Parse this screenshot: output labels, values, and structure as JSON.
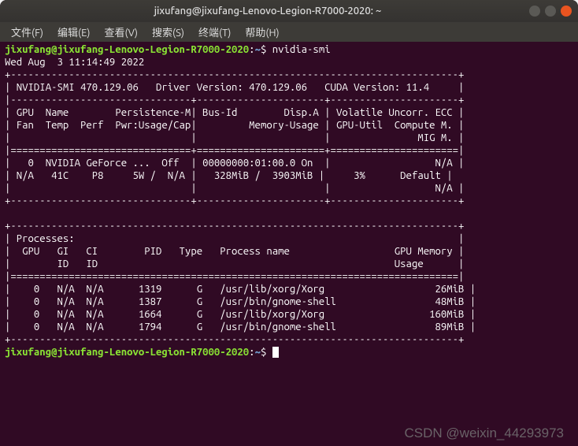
{
  "window": {
    "title": "jixufang@jixufang-Lenovo-Legion-R7000-2020: ~"
  },
  "menubar": {
    "items": [
      "文件(F)",
      "编辑(E)",
      "查看(V)",
      "搜索(S)",
      "终端(T)",
      "帮助(H)"
    ]
  },
  "prompt": {
    "user_host": "jixufang@jixufang-Lenovo-Legion-R7000-2020",
    "sep1": ":",
    "path": "~",
    "sep2": "$"
  },
  "cmd1": "nvidia-smi",
  "smi": {
    "timestamp": "Wed Aug  3 11:14:49 2022",
    "smi_version": "470.129.06",
    "driver_version": "470.129.06",
    "cuda_version": "11.4",
    "gpu_row": {
      "index": "0",
      "name": "NVIDIA GeForce ...",
      "persistence": "Off",
      "bus_id": "00000000:01:00.0",
      "disp_a": "On",
      "mem_used": "328MiB",
      "mem_total": "3903MiB",
      "fan": "N/A",
      "temp": "41C",
      "perf": "P8",
      "pwr_usage": "5W",
      "pwr_cap": "N/A",
      "gpu_util": "3%",
      "compute_m": "Default",
      "volatile_ecc": "N/A",
      "mig_m": "N/A"
    },
    "processes": [
      {
        "gpu": "0",
        "gi": "N/A",
        "ci": "N/A",
        "pid": "1319",
        "type": "G",
        "name": "/usr/lib/xorg/Xorg",
        "mem": "26MiB"
      },
      {
        "gpu": "0",
        "gi": "N/A",
        "ci": "N/A",
        "pid": "1387",
        "type": "G",
        "name": "/usr/bin/gnome-shell",
        "mem": "48MiB"
      },
      {
        "gpu": "0",
        "gi": "N/A",
        "ci": "N/A",
        "pid": "1664",
        "type": "G",
        "name": "/usr/lib/xorg/Xorg",
        "mem": "160MiB"
      },
      {
        "gpu": "0",
        "gi": "N/A",
        "ci": "N/A",
        "pid": "1794",
        "type": "G",
        "name": "/usr/bin/gnome-shell",
        "mem": "89MiB"
      }
    ]
  },
  "watermark": "CSDN @weixin_44293973",
  "colors": {
    "term_bg": "#300a24",
    "term_fg": "#ffffff",
    "prompt_user": "#8ae234",
    "prompt_path": "#729fcf",
    "titlebar_bg": "#3d3b37",
    "close_btn": "#e95420"
  }
}
